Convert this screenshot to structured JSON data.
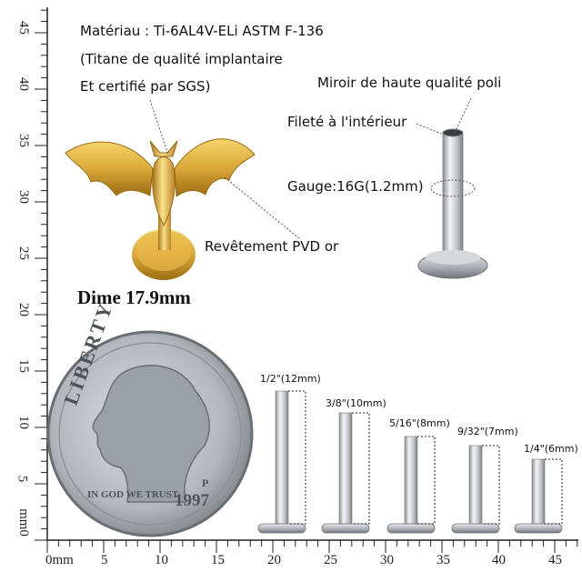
{
  "ruler": {
    "unit_label": "0mm",
    "bottom_ticks": [
      "5",
      "10",
      "15",
      "20",
      "25",
      "30",
      "35",
      "40",
      "45"
    ],
    "left_ticks": [
      "45",
      "40",
      "35",
      "30",
      "25",
      "20",
      "15",
      "10",
      "5",
      "mm0"
    ]
  },
  "annotations": {
    "material_line1": "Matériau : Ti-6AL4V-ELi ASTM F-136",
    "material_line2": "(Titane de qualité implantaire",
    "material_line3": "Et certifié par SGS)",
    "mirror": "Miroir de haute qualité poli",
    "threaded": "Fileté à l'intérieur",
    "gauge": "Gauge:16G(1.2mm)",
    "coating": "Revêtement PVD or",
    "dime": "Dime 17.9mm"
  },
  "coin": {
    "legend_liberty": "LIBERTY",
    "legend_motto": "IN GOD WE TRUST",
    "year": "1997",
    "mint_mark": "P"
  },
  "sizes": [
    {
      "label": "1/2\"(12mm)"
    },
    {
      "label": "3/8\"(10mm)"
    },
    {
      "label": "5/16\"(8mm)"
    },
    {
      "label": "9/32\"(7mm)"
    },
    {
      "label": "1/4\"(6mm)"
    }
  ],
  "colors": {
    "gold": "#d9a93a",
    "steel": "#c8ccd0",
    "coin": "#b9bcbf",
    "ruler": "#222222"
  }
}
